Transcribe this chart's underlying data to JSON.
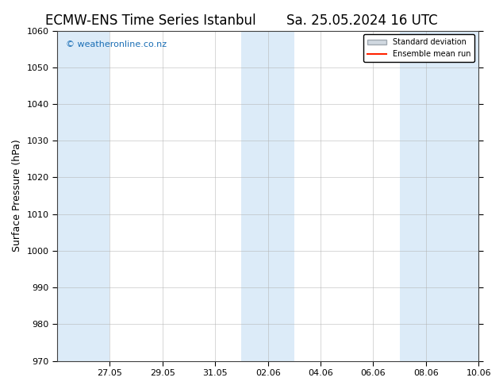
{
  "title_left": "ECMW-ENS Time Series Istanbul",
  "title_right": "Sa. 25.05.2024 16 UTC",
  "ylabel": "Surface Pressure (hPa)",
  "ylim": [
    970,
    1060
  ],
  "yticks": [
    970,
    980,
    990,
    1000,
    1010,
    1020,
    1030,
    1040,
    1050,
    1060
  ],
  "background_color": "#ffffff",
  "plot_bg_color": "#ffffff",
  "shaded_band_color": "#d6e8f7",
  "shaded_band_alpha": 0.85,
  "watermark_text": "© weatheronline.co.nz",
  "watermark_color": "#1a6eb5",
  "legend_std_label": "Standard deviation",
  "legend_mean_label": "Ensemble mean run",
  "legend_std_color": "#d0d8e0",
  "legend_mean_color": "#ff2200",
  "title_fontsize": 12,
  "tick_fontsize": 8,
  "ylabel_fontsize": 9,
  "x_start": "2024-05-25",
  "x_end": "2024-06-10",
  "x_tick_labels": [
    "27.05",
    "29.05",
    "31.05",
    "02.06",
    "04.06",
    "06.06",
    "08.06",
    "10.06"
  ],
  "x_tick_dates": [
    "2024-05-27",
    "2024-05-29",
    "2024-05-31",
    "2024-06-02",
    "2024-06-04",
    "2024-06-06",
    "2024-06-08",
    "2024-06-10"
  ],
  "shaded_columns": [
    [
      "2024-05-25",
      "2024-05-27"
    ],
    [
      "2024-06-01",
      "2024-06-03"
    ],
    [
      "2024-06-07",
      "2024-06-10"
    ]
  ],
  "grid_color": "#b0b0b0",
  "grid_linewidth": 0.5
}
